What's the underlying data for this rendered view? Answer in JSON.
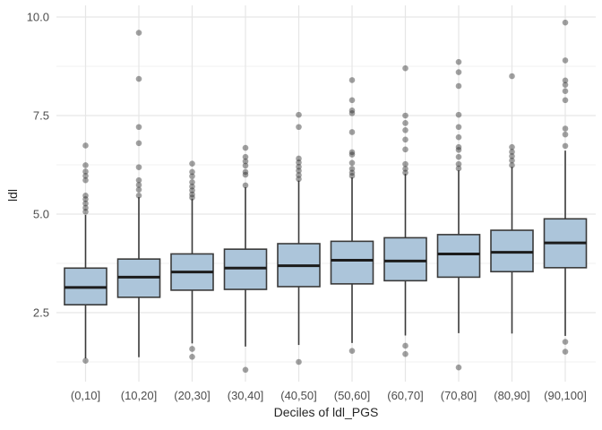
{
  "figure": {
    "background": "#ffffff"
  },
  "chart_data": {
    "type": "boxplot",
    "title": "",
    "xlabel": "Deciles of ldl_PGS",
    "ylabel": "ldl",
    "ylim": [
      0.8,
      10.3
    ],
    "grid": "major and minor horizontal lines, one vertical major line per category",
    "legend_position": "none",
    "y_ticks": [
      {
        "value": 10.0,
        "label": "10.0"
      },
      {
        "value": 7.5,
        "label": "7.5"
      },
      {
        "value": 5.0,
        "label": "5.0"
      },
      {
        "value": 2.5,
        "label": "2.5"
      }
    ],
    "y_minor_ticks": [
      8.75,
      6.25,
      3.75,
      1.25
    ],
    "categories": [
      "(0,10]",
      "(10,20]",
      "(20,30]",
      "(30,40]",
      "(40,50]",
      "(50,60]",
      "(60,70]",
      "(70,80]",
      "(80,90]",
      "(90,100]"
    ],
    "series": [
      {
        "category": "(0,10]",
        "whisker_low": 1.34,
        "q1": 2.7,
        "median": 3.14,
        "q3": 3.63,
        "whisker_high": 4.98,
        "outliers_high": [
          6.74,
          6.24,
          6.08,
          5.97,
          5.86,
          5.47,
          5.38,
          5.27,
          5.16,
          5.06
        ],
        "outliers_low": [
          1.28
        ]
      },
      {
        "category": "(10,20]",
        "whisker_low": 1.37,
        "q1": 2.89,
        "median": 3.4,
        "q3": 3.86,
        "whisker_high": 5.43,
        "outliers_high": [
          9.6,
          8.43,
          7.21,
          6.8,
          6.19,
          5.86,
          5.74,
          5.62,
          5.47
        ],
        "outliers_low": []
      },
      {
        "category": "(20,30]",
        "whisker_low": 1.72,
        "q1": 3.07,
        "median": 3.53,
        "q3": 3.99,
        "whisker_high": 5.39,
        "outliers_high": [
          6.28,
          6.07,
          5.96,
          5.81,
          5.7,
          5.6,
          5.5,
          5.42
        ],
        "outliers_low": [
          1.58,
          1.38
        ]
      },
      {
        "category": "(30,40]",
        "whisker_low": 1.64,
        "q1": 3.09,
        "median": 3.63,
        "q3": 4.11,
        "whisker_high": 5.68,
        "outliers_high": [
          6.68,
          6.45,
          6.34,
          6.23,
          6.07,
          6.0,
          5.73
        ],
        "outliers_low": [
          1.05
        ]
      },
      {
        "category": "(40,50]",
        "whisker_low": 1.68,
        "q1": 3.16,
        "median": 3.69,
        "q3": 4.25,
        "whisker_high": 5.85,
        "outliers_high": [
          7.52,
          7.21,
          6.41,
          6.31,
          6.2,
          6.1,
          5.99,
          5.89
        ],
        "outliers_low": [
          1.25
        ]
      },
      {
        "category": "(50,60]",
        "whisker_low": 1.73,
        "q1": 3.23,
        "median": 3.83,
        "q3": 4.31,
        "whisker_high": 5.93,
        "outliers_high": [
          8.4,
          7.89,
          7.63,
          7.56,
          7.08,
          6.57,
          6.51,
          6.3,
          6.15,
          6.05,
          5.97
        ],
        "outliers_low": [
          1.53
        ]
      },
      {
        "category": "(60,70]",
        "whisker_low": 1.92,
        "q1": 3.31,
        "median": 3.81,
        "q3": 4.4,
        "whisker_high": 6.02,
        "outliers_high": [
          8.7,
          7.5,
          7.31,
          7.13,
          6.89,
          6.64,
          6.27,
          6.15,
          6.05
        ],
        "outliers_low": [
          1.66,
          1.45
        ]
      },
      {
        "category": "(70,80]",
        "whisker_low": 1.98,
        "q1": 3.4,
        "median": 3.99,
        "q3": 4.48,
        "whisker_high": 6.11,
        "outliers_high": [
          8.86,
          8.6,
          8.25,
          7.52,
          7.21,
          6.95,
          6.7,
          6.63,
          6.45,
          6.27,
          6.16
        ],
        "outliers_low": [
          1.11
        ]
      },
      {
        "category": "(80,90]",
        "whisker_low": 1.97,
        "q1": 3.54,
        "median": 4.03,
        "q3": 4.59,
        "whisker_high": 6.2,
        "outliers_high": [
          8.5,
          6.7,
          6.58,
          6.47,
          6.36,
          6.24
        ],
        "outliers_low": []
      },
      {
        "category": "(90,100]",
        "whisker_low": 1.91,
        "q1": 3.64,
        "median": 4.27,
        "q3": 4.88,
        "whisker_high": 6.61,
        "outliers_high": [
          9.86,
          8.9,
          8.39,
          8.28,
          8.12,
          7.89,
          7.17,
          7.02,
          6.73
        ],
        "outliers_low": [
          1.76,
          1.51
        ]
      }
    ],
    "style": {
      "box_fill": "#acc5da",
      "box_border": "#3a3a3a",
      "median_color": "#1c1c1c",
      "whisker_color": "#3a3a3a",
      "outlier_color": "#2e2e2e",
      "grid_major": "#e6e6e6",
      "grid_minor": "#f2f2f2",
      "tick_text": "#4d4d4d",
      "axis_title_text": "#262626",
      "background": "#ffffff"
    }
  }
}
